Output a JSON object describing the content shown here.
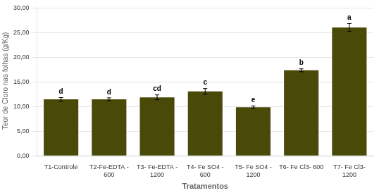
{
  "chart_data": {
    "type": "bar",
    "categories": [
      "T1-Controle",
      "T2-Fe-EDTA -\n600",
      "T3- Fe-EDTA -\n1200",
      "T4- Fe SO4 -\n600",
      "T5- Fe SO4 -\n1200",
      "T6- Fe Cl3- 600",
      "T7- Fe Cl3-\n1200"
    ],
    "values": [
      11.5,
      11.5,
      11.9,
      13.1,
      9.9,
      17.4,
      26.1
    ],
    "errors": [
      0.35,
      0.3,
      0.5,
      0.6,
      0.25,
      0.3,
      0.8
    ],
    "letters": [
      "d",
      "d",
      "cd",
      "c",
      "e",
      "b",
      "a"
    ],
    "color": "#4a4a08",
    "ylabel": "Teor de Cloro nas folhas (g/Kg)",
    "xlabel": "Tratamentos",
    "ylim": [
      0,
      30.5
    ],
    "yticks": [
      {
        "value": 0,
        "label": "0,00"
      },
      {
        "value": 5,
        "label": "5,00"
      },
      {
        "value": 10,
        "label": "10,00"
      },
      {
        "value": 15,
        "label": "15,00"
      },
      {
        "value": 20,
        "label": "20,00"
      },
      {
        "value": 25,
        "label": "25,00"
      },
      {
        "value": 30,
        "label": "30,00"
      }
    ],
    "grid": true
  }
}
